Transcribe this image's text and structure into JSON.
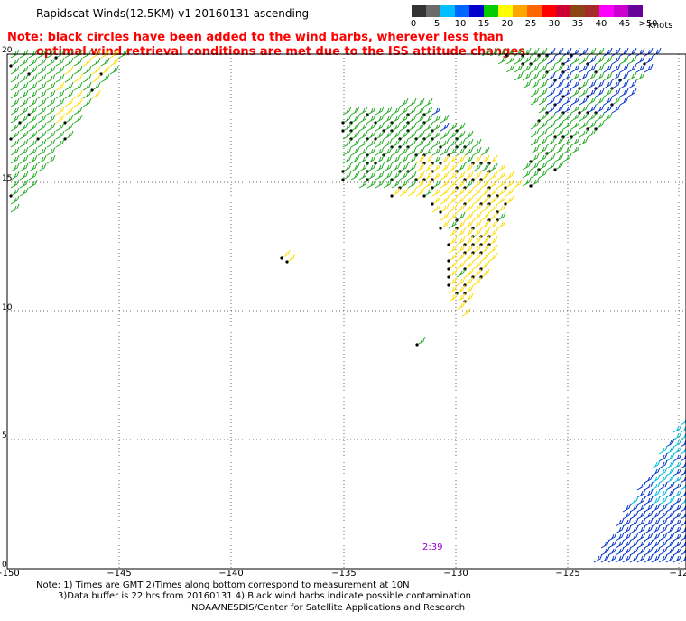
{
  "header": {
    "title": "Rapidscat Winds(12.5KM) v1 20160131 ascending"
  },
  "note": {
    "line1": "Note: black circles have been added to the wind barbs, wherever less than",
    "line2": "optimal wind retrieval conditions are met due to the ISS attitude changes."
  },
  "legend": {
    "colors": [
      "#333333",
      "#6b6b6b",
      "#00bfff",
      "#0066ff",
      "#0000cc",
      "#00cc00",
      "#ffff00",
      "#ffa500",
      "#ff6600",
      "#ff0000",
      "#cc0033",
      "#8b4513",
      "#a52a2a",
      "#ff00ff",
      "#cc00cc",
      "#660099"
    ],
    "labels": [
      "0",
      "5",
      "10",
      "15",
      "20",
      "25",
      "30",
      "35",
      "40",
      "45",
      ">50"
    ],
    "unit": "knots"
  },
  "axes": {
    "lat_labels": [
      "20",
      "15",
      "10",
      "5",
      "0"
    ],
    "lon_labels": [
      "−150",
      "−145",
      "−140",
      "−135",
      "−130",
      "−125",
      "−12"
    ]
  },
  "map": {
    "time_label": "2:39",
    "colors": {
      "wind_green": "#22aa22",
      "wind_yellow": "#ffdd00",
      "wind_blue": "#0033cc",
      "wind_cyan": "#00bbdd",
      "flag_black": "#000000",
      "time_purple": "#9900cc"
    }
  },
  "footer": {
    "line1": "Note: 1) Times are GMT 2)Times along bottom correspond to measurement at 10N",
    "line2": "3)Data buffer is 22 hrs from 20160131 4) Black wind barbs indicate possible contamination",
    "line3": "NOAA/NESDIS/Center for Satellite Applications and Research"
  }
}
